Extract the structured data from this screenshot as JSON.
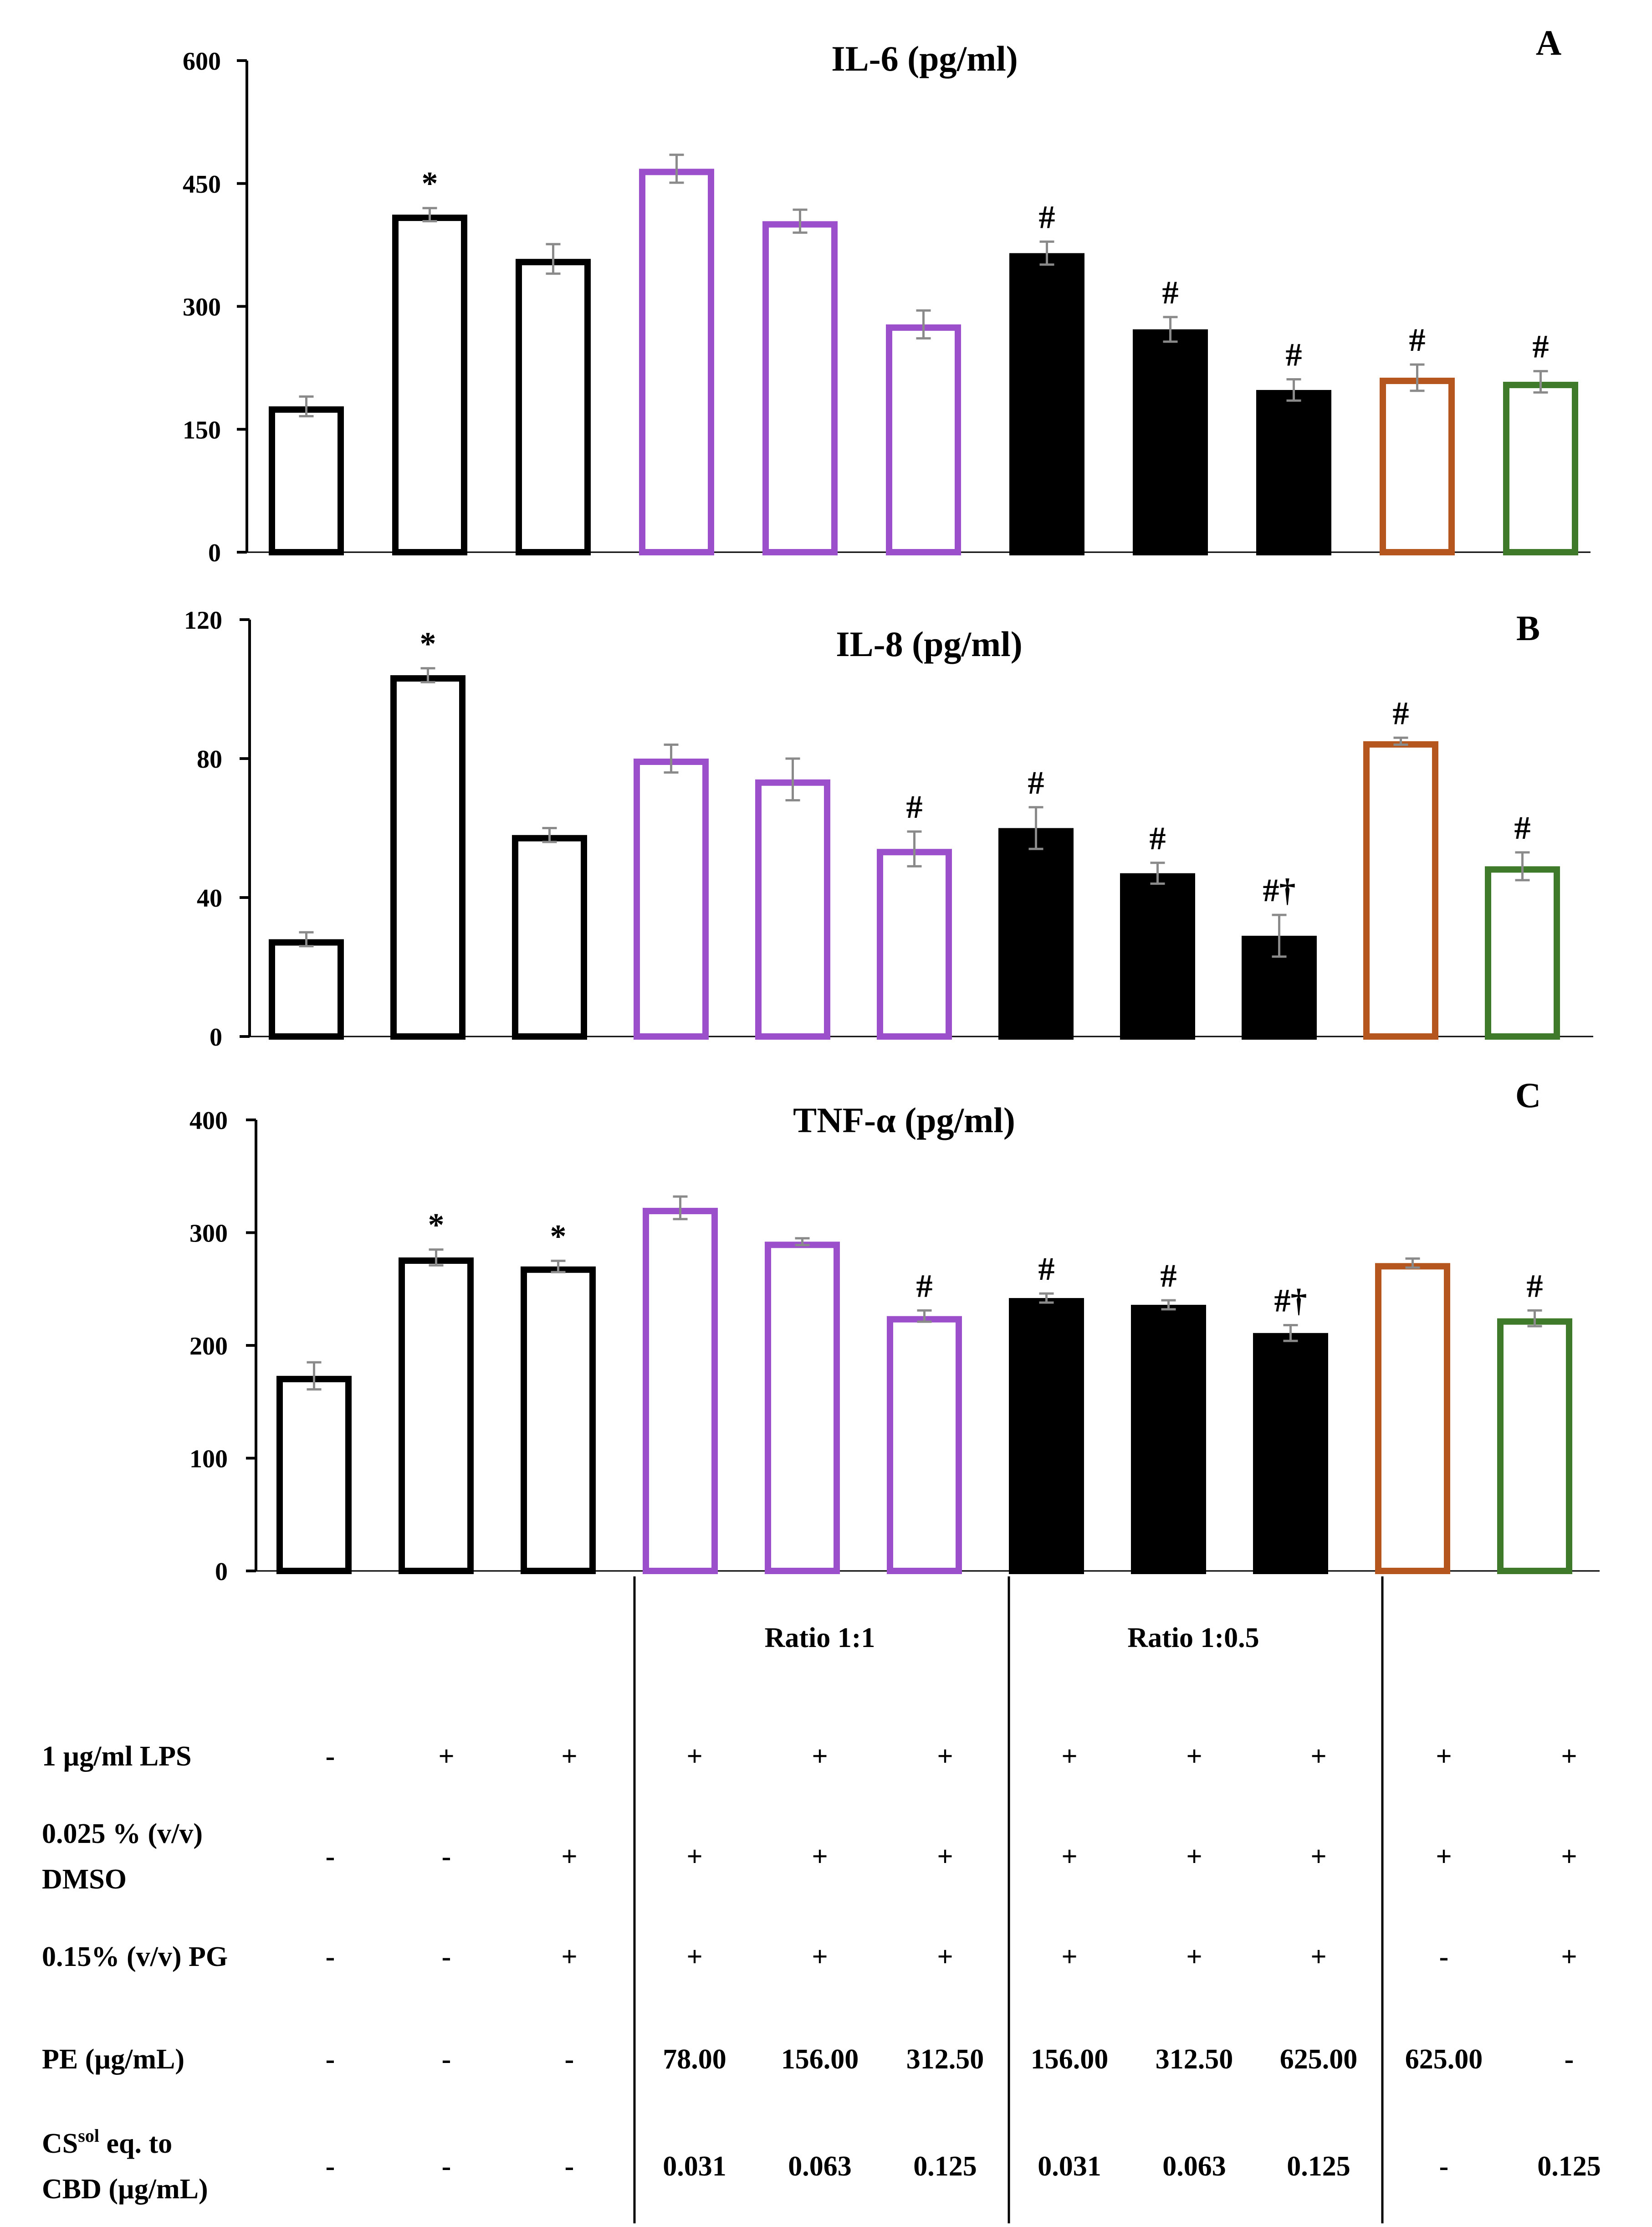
{
  "colors": {
    "black": "#000000",
    "purple": "#9B4FCB",
    "orange": "#B4561E",
    "green": "#3F7A2A",
    "error": "#8a8a8a"
  },
  "bar_styles": [
    "open-black",
    "open-black",
    "open-black",
    "open-purple",
    "open-purple",
    "open-purple",
    "filled-black",
    "filled-black",
    "filled-black",
    "open-orange",
    "open-green"
  ],
  "chart_data": [
    {
      "type": "bar",
      "panel": "A",
      "title": "IL-6 (pg/ml)",
      "ylim": [
        0,
        600
      ],
      "yticks": [
        "0",
        "150",
        "300",
        "450",
        "600"
      ],
      "values": [
        178,
        412,
        358,
        468,
        404,
        278,
        365,
        272,
        198,
        213,
        208
      ],
      "errors": [
        12,
        8,
        18,
        17,
        14,
        17,
        14,
        15,
        13,
        16,
        13
      ],
      "annotations": [
        "",
        "*",
        "",
        "",
        "",
        "",
        "#",
        "#",
        "#",
        "#",
        "#"
      ]
    },
    {
      "type": "bar",
      "panel": "B",
      "title": "IL-8 (pg/ml)",
      "ylim": [
        0,
        120
      ],
      "yticks": [
        "0",
        "40",
        "80",
        "120"
      ],
      "values": [
        28,
        104,
        58,
        80,
        74,
        54,
        60,
        47,
        29,
        null,
        49
      ],
      "errors": [
        2,
        2,
        2,
        4,
        6,
        5,
        6,
        3,
        6,
        0,
        4
      ],
      "annotations": [
        "",
        "*",
        "",
        "",
        "",
        "#",
        "#",
        "#",
        "#†",
        "#",
        "#"
      ]
    },
    {
      "type": "bar",
      "panel": "C",
      "title": "TNF-α (pg/ml)",
      "ylim": [
        0,
        400
      ],
      "yticks": [
        "0",
        "100",
        "200",
        "300",
        "400"
      ],
      "values": [
        173,
        278,
        270,
        322,
        292,
        226,
        242,
        236,
        211,
        273,
        224
      ],
      "errors": [
        12,
        7,
        5,
        10,
        3,
        5,
        4,
        4,
        7,
        4,
        7
      ],
      "annotations": [
        "",
        "*",
        "*",
        "",
        "",
        "#",
        "#",
        "#",
        "#†",
        "",
        "#"
      ]
    }
  ],
  "il8_bar10": {
    "value": 85,
    "error": 1
  },
  "panel_labels": [
    "A",
    "B",
    "C"
  ],
  "table": {
    "group_headers": [
      "Ratio 1:1",
      "Ratio 1:0.5"
    ],
    "rows": [
      {
        "label_lines": [
          "1 µg/ml LPS"
        ],
        "cells": [
          "-",
          "+",
          "+",
          "+",
          "+",
          "+",
          "+",
          "+",
          "+",
          "+",
          "+"
        ]
      },
      {
        "label_lines": [
          "0.025 % (v/v)",
          "DMSO"
        ],
        "cells": [
          "-",
          "-",
          "+",
          "+",
          "+",
          "+",
          "+",
          "+",
          "+",
          "+",
          "+"
        ]
      },
      {
        "label_lines": [
          "0.15% (v/v) PG"
        ],
        "cells": [
          "-",
          "-",
          "+",
          "+",
          "+",
          "+",
          "+",
          "+",
          "+",
          "-",
          "+"
        ]
      },
      {
        "label_lines": [
          "PE (µg/mL)"
        ],
        "cells": [
          "-",
          "-",
          "-",
          "78.00",
          "156.00",
          "312.50",
          "156.00",
          "312.50",
          "625.00",
          "625.00",
          "-"
        ]
      },
      {
        "label_lines": [
          "CS",
          "eq. to",
          "CBD (µg/mL)"
        ],
        "label_sup": "sol",
        "cells": [
          "-",
          "-",
          "-",
          "0.031",
          "0.063",
          "0.125",
          "0.031",
          "0.063",
          "0.125",
          "-",
          "0.125"
        ]
      }
    ]
  }
}
